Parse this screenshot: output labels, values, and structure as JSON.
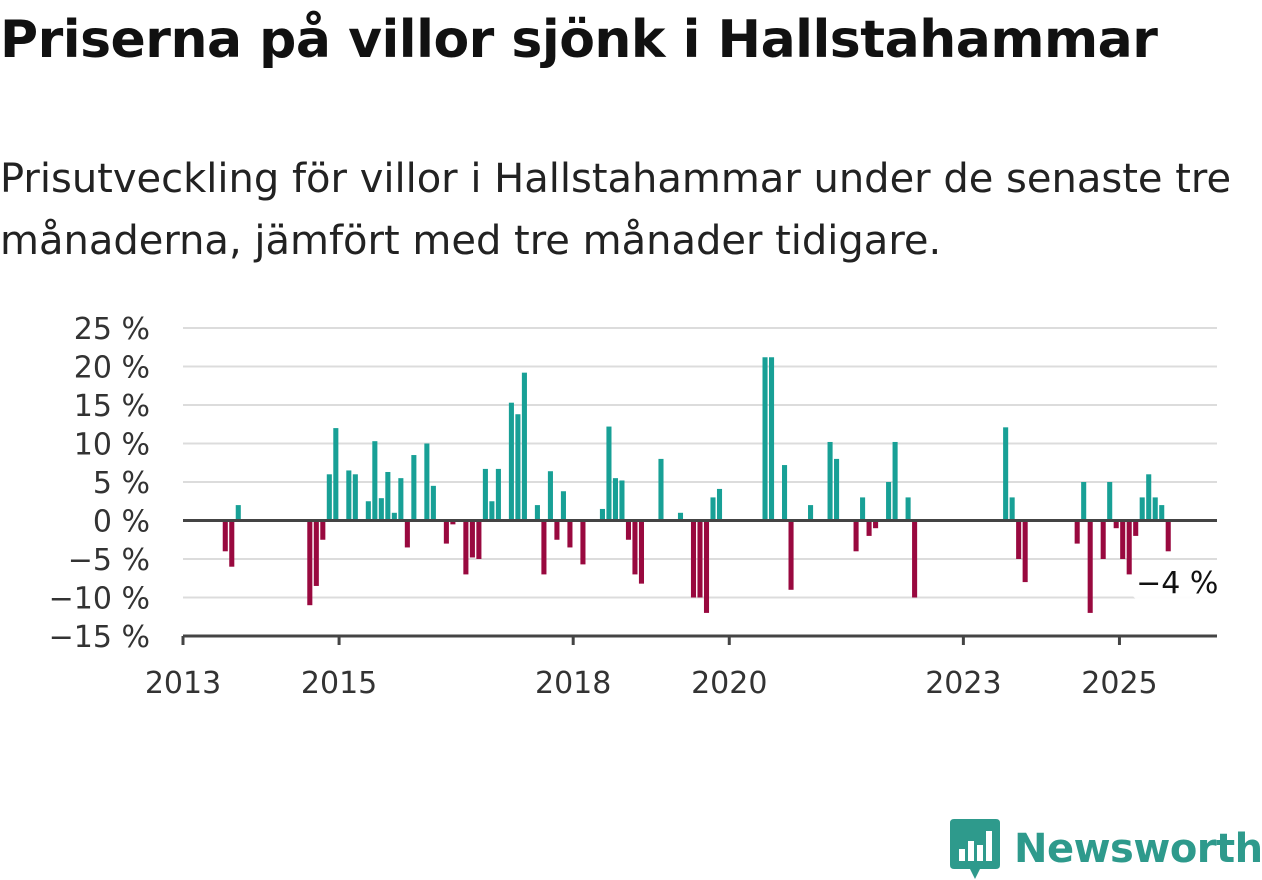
{
  "header": {
    "title": "Priserna på villor sjönk i Hallstahammar",
    "subtitle": "Prisutveckling för villor i Hallstahammar under de senaste tre månaderna, jämfört med tre månader tidigare."
  },
  "brand": {
    "name": "Newsworthy",
    "logo_icon": "bar-chart-badge-icon",
    "color": "#2e9a8c"
  },
  "colors": {
    "positive": "#18a096",
    "negative": "#99093f",
    "grid": "#dcdcdc",
    "axis": "#444444"
  },
  "chart_data": {
    "type": "bar",
    "ylim": [
      -15,
      25
    ],
    "yticks": [
      25,
      20,
      15,
      10,
      5,
      0,
      -5,
      -10,
      -15
    ],
    "ytick_labels": [
      "25 %",
      "20 %",
      "15 %",
      "10 %",
      "5 %",
      "0 %",
      "−5 %",
      "−10 %",
      "−15 %"
    ],
    "xlim": [
      "2013-01",
      "2026-04"
    ],
    "xticks": [
      {
        "date": "2013-01",
        "label": "2013"
      },
      {
        "date": "2015-01",
        "label": "2015"
      },
      {
        "date": "2018-01",
        "label": "2018"
      },
      {
        "date": "2020-01",
        "label": "2020"
      },
      {
        "date": "2023-01",
        "label": "2023"
      },
      {
        "date": "2025-01",
        "label": "2025"
      }
    ],
    "grid": true,
    "last_value_label": "−4 %",
    "series": [
      {
        "values": [
          [
            "2013-07",
            -4
          ],
          [
            "2013-08",
            -6
          ],
          [
            "2013-09",
            2
          ],
          [
            "2014-08",
            -11
          ],
          [
            "2014-09",
            -8.5
          ],
          [
            "2014-10",
            -2.5
          ],
          [
            "2014-11",
            6
          ],
          [
            "2014-12",
            12
          ],
          [
            "2015-01",
            0
          ],
          [
            "2015-02",
            6.5
          ],
          [
            "2015-03",
            6
          ],
          [
            "2015-04",
            0
          ],
          [
            "2015-05",
            2.5
          ],
          [
            "2015-06",
            10.3
          ],
          [
            "2015-07",
            2.9
          ],
          [
            "2015-08",
            6.3
          ],
          [
            "2015-09",
            1
          ],
          [
            "2015-10",
            5.5
          ],
          [
            "2015-11",
            -3.5
          ],
          [
            "2015-12",
            8.5
          ],
          [
            "2016-01",
            0
          ],
          [
            "2016-02",
            10
          ],
          [
            "2016-03",
            4.5
          ],
          [
            "2016-04",
            0
          ],
          [
            "2016-05",
            -3
          ],
          [
            "2016-06",
            -0.5
          ],
          [
            "2016-07",
            0
          ],
          [
            "2016-08",
            -7
          ],
          [
            "2016-09",
            -4.8
          ],
          [
            "2016-10",
            -5
          ],
          [
            "2016-11",
            6.7
          ],
          [
            "2016-12",
            2.5
          ],
          [
            "2017-01",
            6.7
          ],
          [
            "2017-02",
            0
          ],
          [
            "2017-03",
            15.3
          ],
          [
            "2017-04",
            13.8
          ],
          [
            "2017-05",
            19.2
          ],
          [
            "2017-06",
            0
          ],
          [
            "2017-07",
            2
          ],
          [
            "2017-08",
            -7
          ],
          [
            "2017-09",
            6.4
          ],
          [
            "2017-10",
            -2.5
          ],
          [
            "2017-11",
            3.8
          ],
          [
            "2017-12",
            -3.5
          ],
          [
            "2018-01",
            0
          ],
          [
            "2018-02",
            -5.7
          ],
          [
            "2018-03",
            0
          ],
          [
            "2018-04",
            0
          ],
          [
            "2018-05",
            1.5
          ],
          [
            "2018-06",
            12.2
          ],
          [
            "2018-07",
            5.5
          ],
          [
            "2018-08",
            5.2
          ],
          [
            "2018-09",
            -2.5
          ],
          [
            "2018-10",
            -7
          ],
          [
            "2018-11",
            -8.2
          ],
          [
            "2018-12",
            0
          ],
          [
            "2019-01",
            0
          ],
          [
            "2019-02",
            8
          ],
          [
            "2019-03",
            0
          ],
          [
            "2019-04",
            0
          ],
          [
            "2019-05",
            1
          ],
          [
            "2019-06",
            0
          ],
          [
            "2019-07",
            -10
          ],
          [
            "2019-08",
            -10
          ],
          [
            "2019-09",
            -12
          ],
          [
            "2019-10",
            3
          ],
          [
            "2019-11",
            4.1
          ],
          [
            "2020-06",
            21.2
          ],
          [
            "2020-07",
            21.2
          ],
          [
            "2020-08",
            0
          ],
          [
            "2020-09",
            7.2
          ],
          [
            "2020-10",
            -9
          ],
          [
            "2021-01",
            2
          ],
          [
            "2021-04",
            10.2
          ],
          [
            "2021-05",
            8
          ],
          [
            "2021-08",
            -4
          ],
          [
            "2021-09",
            3
          ],
          [
            "2021-10",
            -2
          ],
          [
            "2021-11",
            -1
          ],
          [
            "2022-01",
            5
          ],
          [
            "2022-02",
            10.2
          ],
          [
            "2022-04",
            3
          ],
          [
            "2022-05",
            -10
          ],
          [
            "2023-07",
            12.1
          ],
          [
            "2023-08",
            3
          ],
          [
            "2023-09",
            -5
          ],
          [
            "2023-10",
            -8
          ],
          [
            "2024-06",
            -3
          ],
          [
            "2024-07",
            5
          ],
          [
            "2024-08",
            -12
          ],
          [
            "2024-10",
            -5
          ],
          [
            "2024-11",
            5
          ],
          [
            "2024-12",
            -1
          ],
          [
            "2025-01",
            -5
          ],
          [
            "2025-02",
            -7
          ],
          [
            "2025-03",
            -2
          ],
          [
            "2025-04",
            3
          ],
          [
            "2025-05",
            6
          ],
          [
            "2025-06",
            3
          ],
          [
            "2025-07",
            2
          ],
          [
            "2025-08",
            -4
          ]
        ]
      }
    ]
  }
}
